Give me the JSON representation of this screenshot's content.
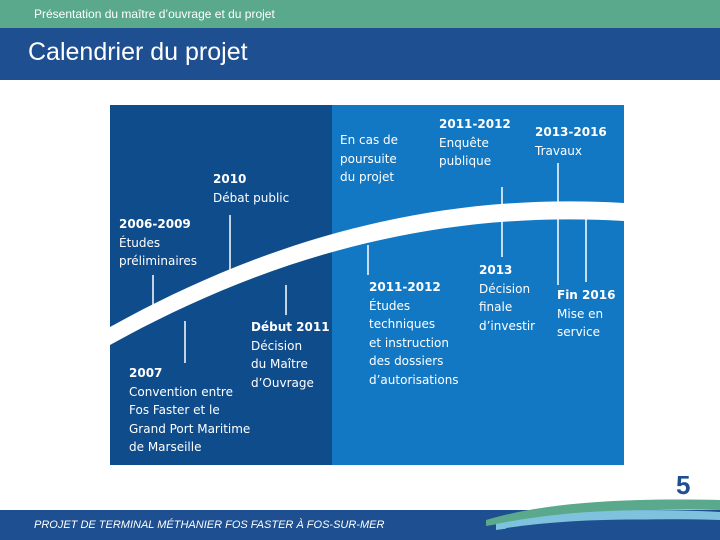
{
  "header": {
    "subtitle": "Présentation du maître d’ouvrage et du projet",
    "title": "Calendrier du projet"
  },
  "timeline": {
    "upper": [
      {
        "year": "2006-2009",
        "lines": [
          "Études",
          "préliminaires"
        ]
      },
      {
        "year": "2010",
        "lines": [
          "Débat public"
        ]
      },
      {
        "year": "",
        "lines": [
          "En cas de",
          "poursuite",
          "du projet"
        ]
      },
      {
        "year": "2011-2012",
        "lines": [
          "Enquête",
          "publique"
        ]
      },
      {
        "year": "2013-2016",
        "lines": [
          "Travaux"
        ]
      }
    ],
    "lower": [
      {
        "year": "2007",
        "lines": [
          "Convention entre",
          "Fos Faster et le",
          "Grand Port Maritime",
          "de Marseille"
        ]
      },
      {
        "year": "Début 2011",
        "lines": [
          "Décision",
          "du Maître",
          "d’Ouvrage"
        ]
      },
      {
        "year": "2011-2012",
        "lines": [
          "Études",
          "techniques",
          "et instruction",
          "des dossiers",
          "d’autorisations"
        ]
      },
      {
        "year": "2013",
        "lines": [
          "Décision",
          "finale",
          "d’investir"
        ]
      },
      {
        "year": "Fin 2016",
        "lines": [
          "Mise en",
          "service"
        ]
      }
    ]
  },
  "colors": {
    "phase1": "#0f4c8c",
    "phase2": "#1278c4",
    "topbar": "#5aa98c",
    "titlebar": "#1d4f91"
  },
  "page_number": "5",
  "footer": {
    "text": "PROJET DE TERMINAL MÉTHANIER FOS FASTER À FOS-SUR-MER"
  }
}
